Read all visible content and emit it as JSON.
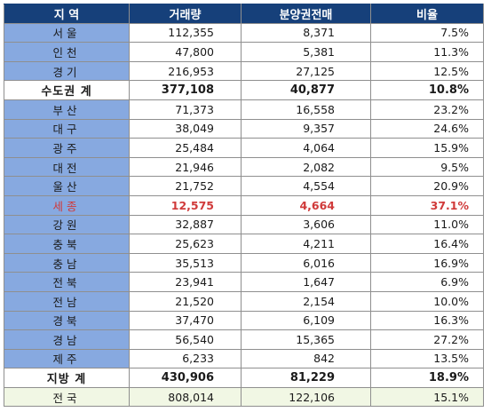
{
  "table": {
    "headers": [
      "지 역",
      "거래량",
      "분양권전매",
      "비율"
    ],
    "rows": [
      {
        "region": "서울",
        "volume": "112,355",
        "presale": "8,371",
        "ratio": "7.5%",
        "type": "normal"
      },
      {
        "region": "인천",
        "volume": "47,800",
        "presale": "5,381",
        "ratio": "11.3%",
        "type": "normal"
      },
      {
        "region": "경기",
        "volume": "216,953",
        "presale": "27,125",
        "ratio": "12.5%",
        "type": "normal"
      },
      {
        "region": "수도권 계",
        "volume": "377,108",
        "presale": "40,877",
        "ratio": "10.8%",
        "type": "subtotal"
      },
      {
        "region": "부산",
        "volume": "71,373",
        "presale": "16,558",
        "ratio": "23.2%",
        "type": "normal"
      },
      {
        "region": "대구",
        "volume": "38,049",
        "presale": "9,357",
        "ratio": "24.6%",
        "type": "normal"
      },
      {
        "region": "광주",
        "volume": "25,484",
        "presale": "4,064",
        "ratio": "15.9%",
        "type": "normal"
      },
      {
        "region": "대전",
        "volume": "21,946",
        "presale": "2,082",
        "ratio": "9.5%",
        "type": "normal"
      },
      {
        "region": "울산",
        "volume": "21,752",
        "presale": "4,554",
        "ratio": "20.9%",
        "type": "normal"
      },
      {
        "region": "세종",
        "volume": "12,575",
        "presale": "4,664",
        "ratio": "37.1%",
        "type": "highlight"
      },
      {
        "region": "강원",
        "volume": "32,887",
        "presale": "3,606",
        "ratio": "11.0%",
        "type": "normal"
      },
      {
        "region": "충북",
        "volume": "25,623",
        "presale": "4,211",
        "ratio": "16.4%",
        "type": "normal"
      },
      {
        "region": "충남",
        "volume": "35,513",
        "presale": "6,016",
        "ratio": "16.9%",
        "type": "normal"
      },
      {
        "region": "전북",
        "volume": "23,941",
        "presale": "1,647",
        "ratio": "6.9%",
        "type": "normal"
      },
      {
        "region": "전남",
        "volume": "21,520",
        "presale": "2,154",
        "ratio": "10.0%",
        "type": "normal"
      },
      {
        "region": "경북",
        "volume": "37,470",
        "presale": "6,109",
        "ratio": "16.3%",
        "type": "normal"
      },
      {
        "region": "경남",
        "volume": "56,540",
        "presale": "15,365",
        "ratio": "27.2%",
        "type": "normal"
      },
      {
        "region": "제주",
        "volume": "6,233",
        "presale": "842",
        "ratio": "13.5%",
        "type": "normal"
      },
      {
        "region": "지방 계",
        "volume": "430,906",
        "presale": "81,229",
        "ratio": "18.9%",
        "type": "subtotal"
      },
      {
        "region": "전국",
        "volume": "808,014",
        "presale": "122,106",
        "ratio": "15.1%",
        "type": "total"
      }
    ]
  },
  "colors": {
    "header_bg": "#16407a",
    "region_bg": "#87a9e0",
    "total_bg": "#f1f7e4",
    "highlight_text": "#d03a3a"
  }
}
